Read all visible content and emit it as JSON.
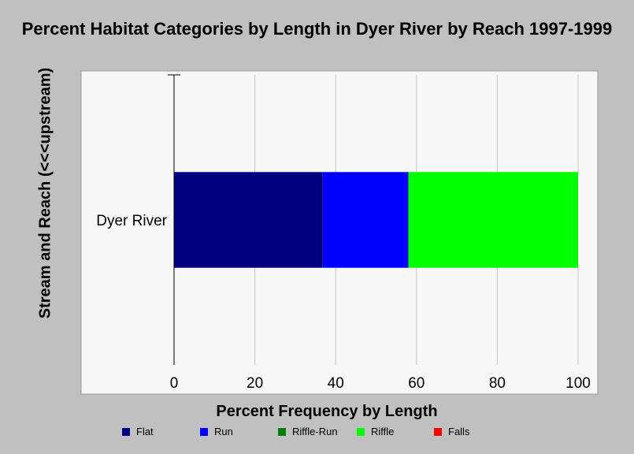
{
  "chart_data": {
    "type": "bar",
    "orientation": "horizontal",
    "stacked": true,
    "title": "Percent Habitat Categories by Length in Dyer River by Reach 1997-1999",
    "xlabel": "Percent Frequency by Length",
    "ylabel": "Stream and Reach (<<<upstream)",
    "categories": [
      "Dyer River"
    ],
    "xlim": [
      0,
      100
    ],
    "x_ticks": [
      "0",
      "20",
      "40",
      "60",
      "80",
      "100"
    ],
    "grid": true,
    "legend_position": "bottom",
    "series": [
      {
        "name": "Flat",
        "color": "#000080",
        "values": [
          36.8
        ]
      },
      {
        "name": "Run",
        "color": "#0000ff",
        "values": [
          21.2
        ]
      },
      {
        "name": "Riffle-Run",
        "color": "#008000",
        "values": [
          0
        ]
      },
      {
        "name": "Riffle",
        "color": "#00ff00",
        "values": [
          42.0
        ]
      },
      {
        "name": "Falls",
        "color": "#ff0000",
        "values": [
          0
        ]
      }
    ]
  }
}
